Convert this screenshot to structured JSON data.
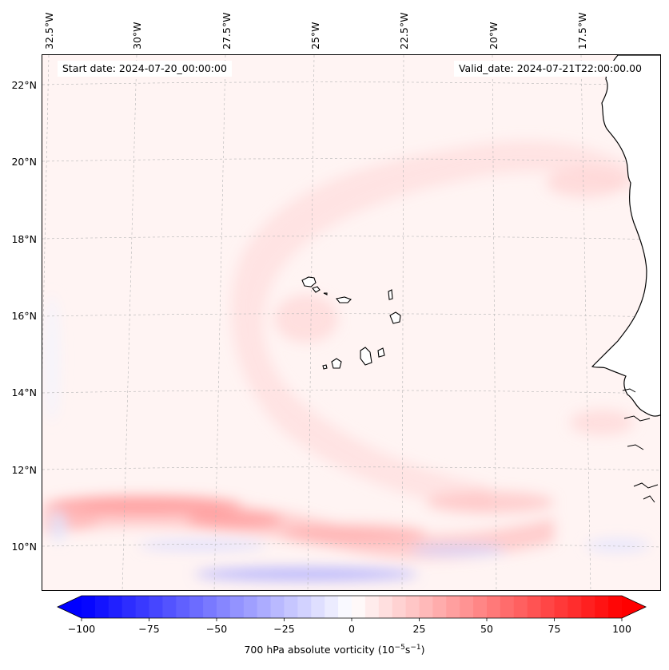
{
  "map": {
    "start_date": "Start date: 2024-07-20_00:00:00",
    "valid_date": "Valid_date: 2024-07-21T22:00:00.00",
    "lat_labels": [
      "22°N",
      "20°N",
      "18°N",
      "16°N",
      "14°N",
      "12°N",
      "10°N"
    ],
    "lon_labels": [
      "32.5°W",
      "30°W",
      "27.5°W",
      "25°W",
      "22.5°W",
      "20°W",
      "17.5°W"
    ],
    "land_fill": "#ffffff",
    "coast_color": "#000000"
  },
  "colorbar": {
    "ticks": [
      "−100",
      "−75",
      "−50",
      "−25",
      "0",
      "25",
      "50",
      "75",
      "100"
    ],
    "label_main": "700 hPa absolute vorticity (10",
    "label_exp1": "−5",
    "label_mid": "s",
    "label_exp2": "−1",
    "label_end": ")",
    "min_color": "#0000ff",
    "mid_color": "#ffffff",
    "max_color": "#ff0000"
  }
}
